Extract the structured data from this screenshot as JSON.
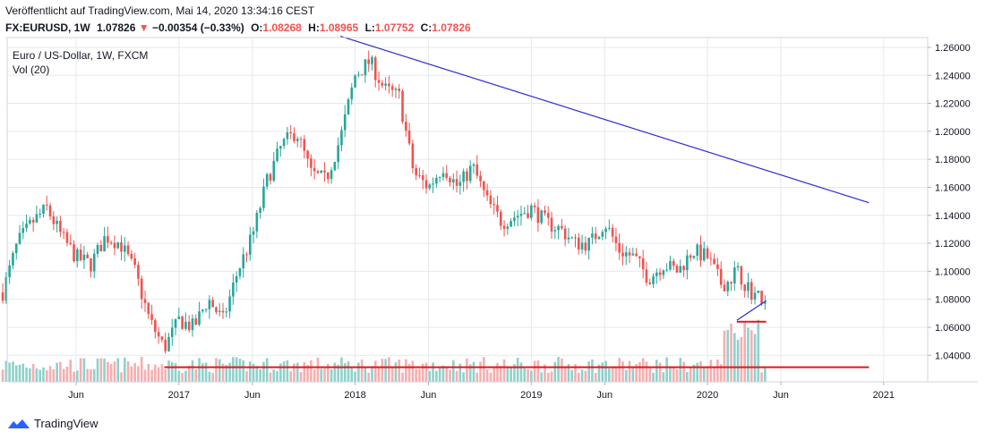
{
  "header": {
    "published": "Veröffentlicht auf TradingView.com, Mai 14, 2020 13:34:16 CEST",
    "symbol": "FX:EURUSD, 1W",
    "last": "1.07826",
    "arrow": "▼",
    "change": "−0.00354 (−0.33%)",
    "o_label": "O:",
    "o_val": "1.08268",
    "h_label": "H:",
    "h_val": "1.08965",
    "l_label": "L:",
    "l_val": "1.07752",
    "c_label": "C:",
    "c_val": "1.07826"
  },
  "legend": {
    "title": "Euro / US-Dollar, 1W, FXCM",
    "volume": "Vol (20)"
  },
  "footer": {
    "brand": "TradingView"
  },
  "colors": {
    "up": "#26a69a",
    "down": "#ef5350",
    "grid": "#e6e9ee",
    "trendline": "#2b2bd8",
    "support": "#e0191b",
    "volUp": "#8ed1cb",
    "volDown": "#f5aeb0"
  },
  "chart_data": {
    "type": "candlestick",
    "title": "Euro / US-Dollar, 1W, FXCM",
    "ylim": [
      1.021,
      1.267
    ],
    "y_ticks": [
      "1.26000",
      "1.24000",
      "1.22000",
      "1.20000",
      "1.18000",
      "1.16000",
      "1.14000",
      "1.12000",
      "1.10000",
      "1.08000",
      "1.06000",
      "1.04000"
    ],
    "x_ticks": [
      {
        "label": "Jun",
        "date": "2016-06"
      },
      {
        "label": "2017",
        "date": "2017-01"
      },
      {
        "label": "Jun",
        "date": "2017-06"
      },
      {
        "label": "2018",
        "date": "2018-01"
      },
      {
        "label": "Jun",
        "date": "2018-06"
      },
      {
        "label": "2019",
        "date": "2019-01"
      },
      {
        "label": "Jun",
        "date": "2019-06"
      },
      {
        "label": "2020",
        "date": "2020-01"
      },
      {
        "label": "Jun",
        "date": "2020-06"
      },
      {
        "label": "2021",
        "date": "2021-01"
      }
    ],
    "date_range": [
      "2016-01",
      "2021-04"
    ],
    "price_path": [
      [
        "2016-01",
        1.085
      ],
      [
        "2016-02",
        1.12
      ],
      [
        "2016-03",
        1.135
      ],
      [
        "2016-04",
        1.145
      ],
      [
        "2016-05",
        1.125
      ],
      [
        "2016-06",
        1.11
      ],
      [
        "2016-07",
        1.105
      ],
      [
        "2016-08",
        1.125
      ],
      [
        "2016-09",
        1.12
      ],
      [
        "2016-10",
        1.1
      ],
      [
        "2016-11",
        1.065
      ],
      [
        "2016-12",
        1.045
      ],
      [
        "2017-01",
        1.065
      ],
      [
        "2017-02",
        1.06
      ],
      [
        "2017-03",
        1.08
      ],
      [
        "2017-04",
        1.065
      ],
      [
        "2017-05",
        1.1
      ],
      [
        "2017-06",
        1.125
      ],
      [
        "2017-07",
        1.165
      ],
      [
        "2017-08",
        1.19
      ],
      [
        "2017-09",
        1.2
      ],
      [
        "2017-10",
        1.17
      ],
      [
        "2017-11",
        1.165
      ],
      [
        "2017-12",
        1.195
      ],
      [
        "2018-01",
        1.24
      ],
      [
        "2018-02",
        1.25
      ],
      [
        "2018-03",
        1.23
      ],
      [
        "2018-04",
        1.225
      ],
      [
        "2018-05",
        1.17
      ],
      [
        "2018-06",
        1.16
      ],
      [
        "2018-07",
        1.175
      ],
      [
        "2018-08",
        1.16
      ],
      [
        "2018-09",
        1.175
      ],
      [
        "2018-10",
        1.15
      ],
      [
        "2018-11",
        1.135
      ],
      [
        "2018-12",
        1.14
      ],
      [
        "2019-01",
        1.145
      ],
      [
        "2019-02",
        1.135
      ],
      [
        "2019-03",
        1.13
      ],
      [
        "2019-04",
        1.12
      ],
      [
        "2019-05",
        1.12
      ],
      [
        "2019-06",
        1.135
      ],
      [
        "2019-07",
        1.115
      ],
      [
        "2019-08",
        1.11
      ],
      [
        "2019-09",
        1.095
      ],
      [
        "2019-10",
        1.105
      ],
      [
        "2019-11",
        1.1
      ],
      [
        "2019-12",
        1.115
      ],
      [
        "2020-01",
        1.11
      ],
      [
        "2020-02",
        1.09
      ],
      [
        "2020-03",
        1.1
      ],
      [
        "2020-04",
        1.085
      ],
      [
        "2020-05",
        1.0783
      ]
    ],
    "annotations": {
      "trendline": {
        "from": [
          "2017-12",
          1.268
        ],
        "to": [
          "2020-12",
          1.149
        ]
      },
      "support_long": {
        "from": [
          "2016-12",
          1.0315
        ],
        "to": [
          "2020-12",
          1.0315
        ]
      },
      "support_short": {
        "from": [
          "2020-03",
          1.064
        ],
        "to": [
          "2020-05",
          1.064
        ]
      },
      "wedge": {
        "from": [
          "2020-03",
          1.065
        ],
        "to": [
          "2020-05",
          1.079
        ]
      }
    }
  }
}
